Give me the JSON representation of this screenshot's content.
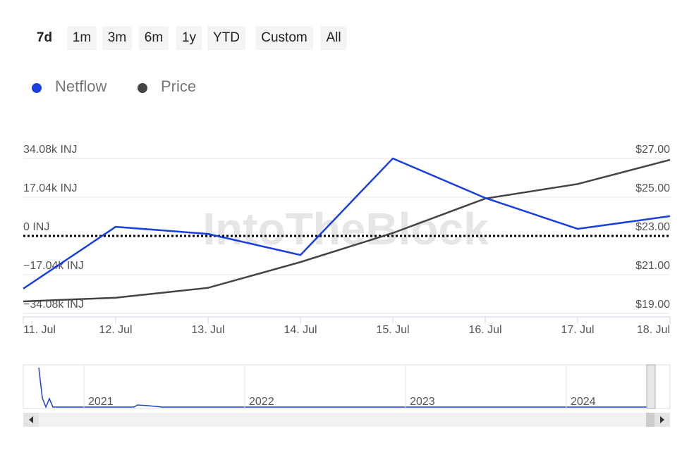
{
  "range_buttons": {
    "labels": [
      "7d",
      "1m",
      "3m",
      "6m",
      "1y",
      "YTD",
      "Custom",
      "All"
    ],
    "active": 0
  },
  "watermark": "IntoTheBlock",
  "chart_data": {
    "type": "line",
    "categories": [
      "11. Jul",
      "12. Jul",
      "13. Jul",
      "14. Jul",
      "15. Jul",
      "16. Jul",
      "17. Jul",
      "18. Jul"
    ],
    "series": [
      {
        "name": "Netflow",
        "color": "#1a3fe0",
        "values": [
          -23200,
          4000,
          900,
          -8400,
          34100,
          16700,
          3100,
          8700
        ]
      },
      {
        "name": "Price",
        "color": "#444444",
        "axis": "y2",
        "values": [
          19.62,
          19.81,
          20.32,
          21.65,
          23.15,
          24.93,
          25.68,
          26.93
        ]
      }
    ],
    "ylim": [
      -34080,
      34080
    ],
    "yticks": [
      {
        "value": 34080,
        "label": "34.08k INJ"
      },
      {
        "value": 17040,
        "label": "17.04k INJ"
      },
      {
        "value": 0,
        "label": "0 INJ"
      },
      {
        "value": -17040,
        "label": "−17.04k INJ"
      },
      {
        "value": -34080,
        "label": "−34.08k INJ"
      }
    ],
    "y2lim": [
      19,
      27
    ],
    "y2ticks": [
      {
        "value": 27,
        "label": "$27.00"
      },
      {
        "value": 25,
        "label": "$25.00"
      },
      {
        "value": 23,
        "label": "$23.00"
      },
      {
        "value": 21,
        "label": "$21.00"
      },
      {
        "value": 19,
        "label": "$19.00"
      }
    ],
    "grid": true,
    "navigator_labels": [
      "2021",
      "2022",
      "2023",
      "2024"
    ]
  }
}
